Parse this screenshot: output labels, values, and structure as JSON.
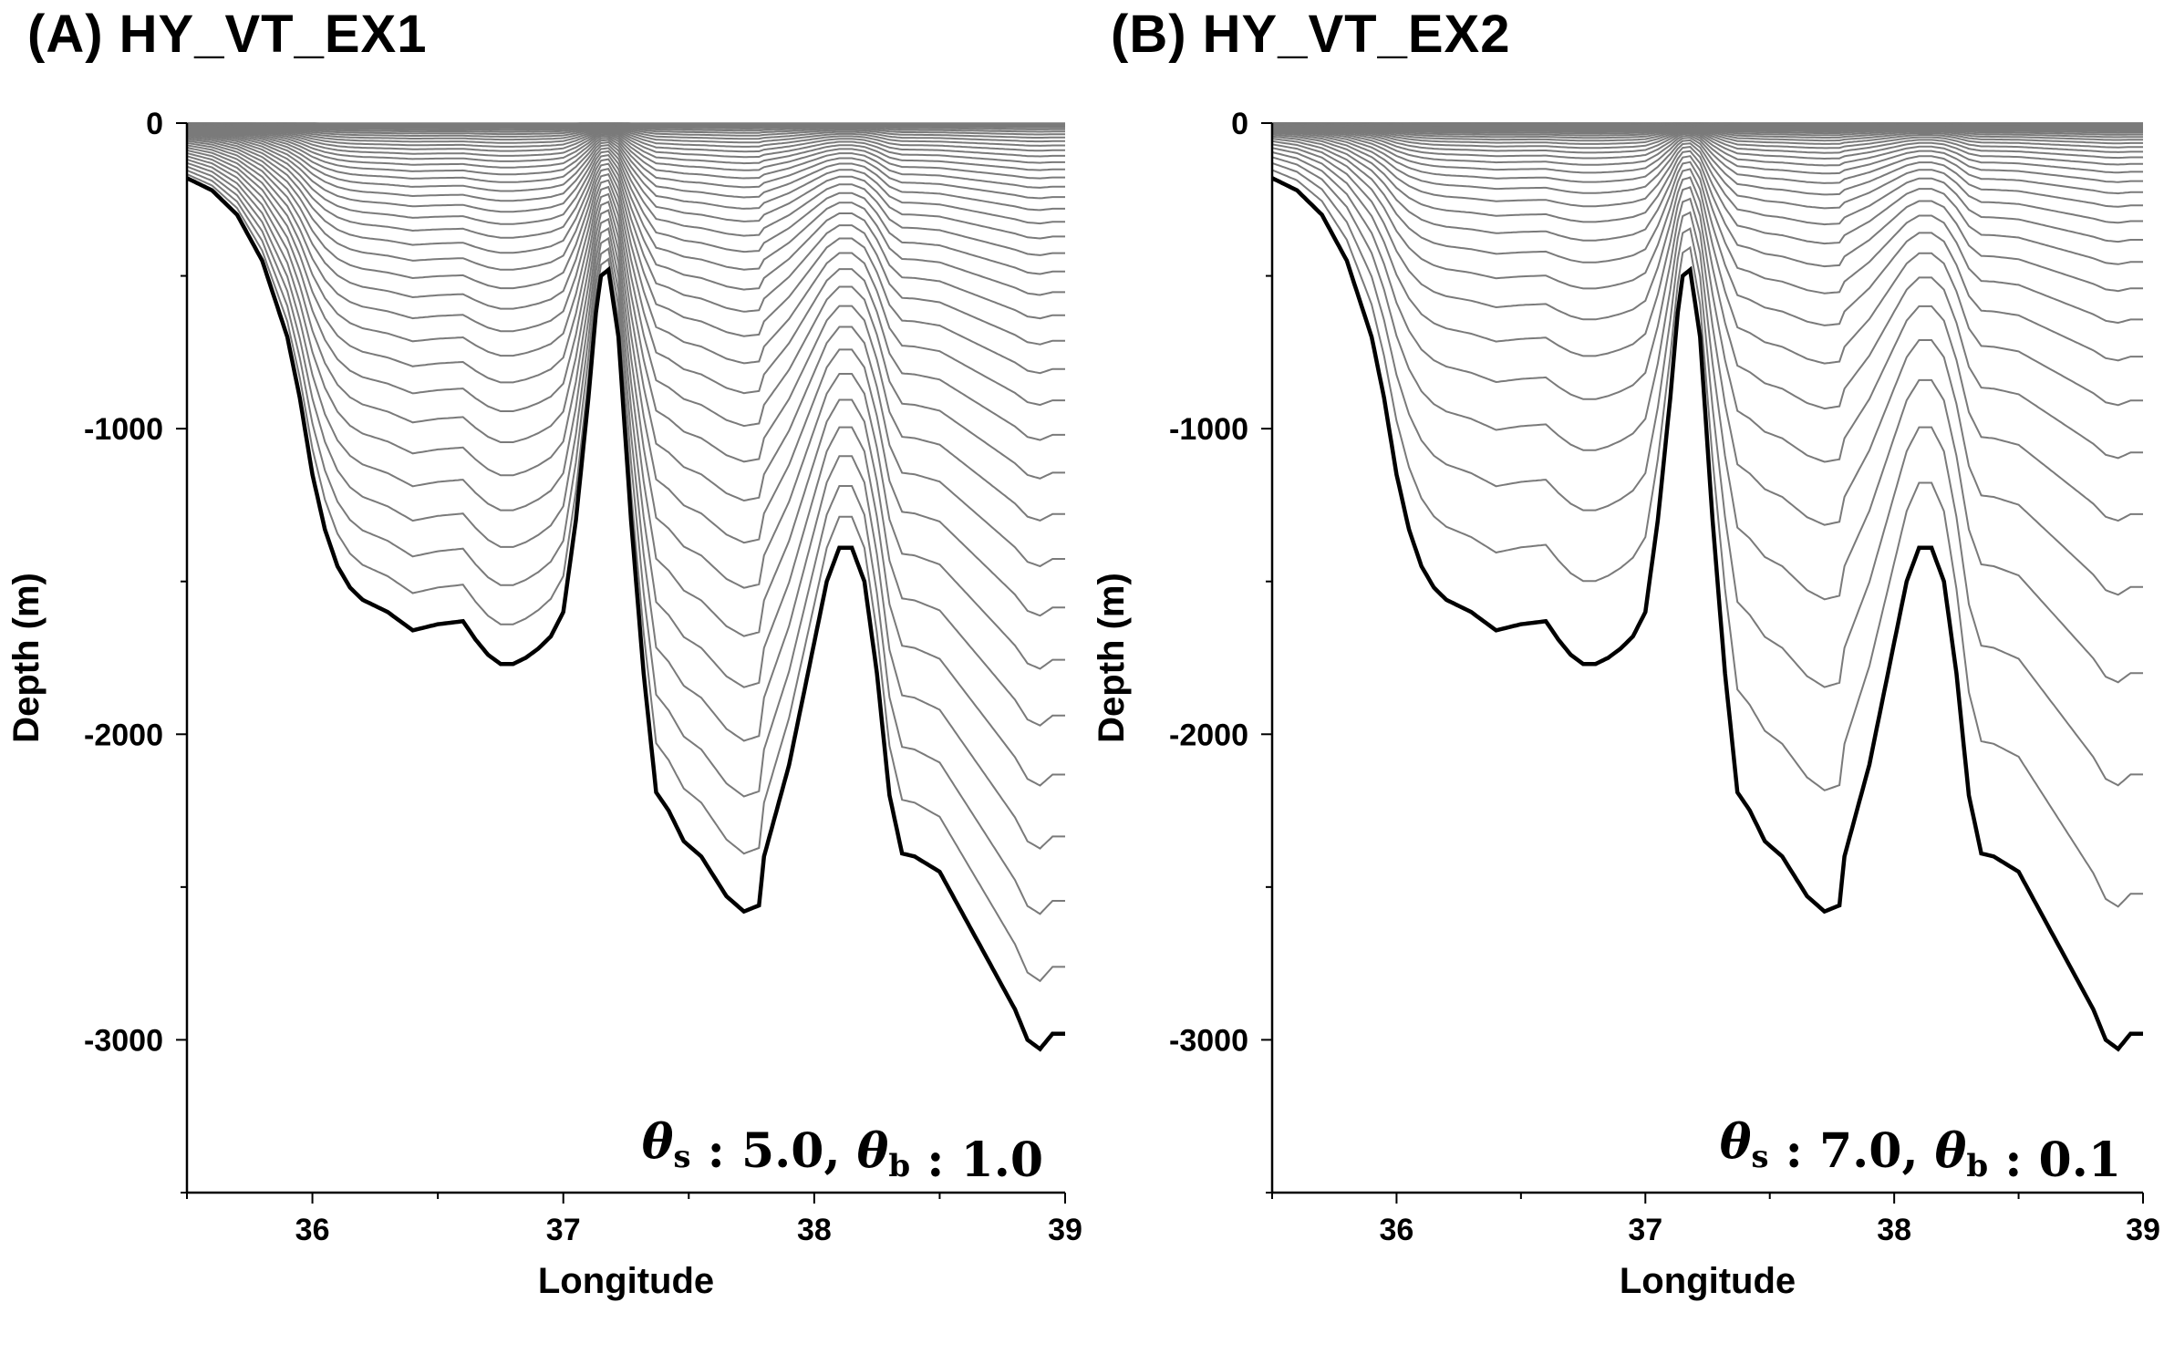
{
  "chart_data": [
    {
      "type": "line",
      "title": "(A) HY_VT_EX1",
      "xlabel": "Longitude",
      "ylabel": "Depth (m)",
      "xlim": [
        35.5,
        39
      ],
      "ylim": [
        -3500,
        0
      ],
      "xticks": [
        36,
        37,
        38,
        39
      ],
      "yticks": [
        0,
        -1000,
        -2000,
        -3000
      ],
      "annotation": {
        "theta_s_symbol": "θ",
        "theta_s_sub": "s",
        "theta_s_value": ": 5.0,",
        "theta_b_symbol": "θ",
        "theta_b_sub": "b",
        "theta_b_value": ": 1.0"
      },
      "theta_s": 5.0,
      "theta_b": 1.0,
      "n_levels": 40,
      "bottom_profile": {
        "x": [
          35.5,
          35.6,
          35.7,
          35.8,
          35.9,
          35.95,
          36.0,
          36.05,
          36.1,
          36.15,
          36.2,
          36.3,
          36.4,
          36.5,
          36.6,
          36.65,
          36.7,
          36.75,
          36.8,
          36.85,
          36.9,
          36.95,
          37.0,
          37.05,
          37.1,
          37.13,
          37.15,
          37.18,
          37.22,
          37.27,
          37.32,
          37.37,
          37.42,
          37.48,
          37.55,
          37.65,
          37.72,
          37.78,
          37.8,
          37.85,
          37.9,
          37.95,
          38.0,
          38.05,
          38.1,
          38.15,
          38.2,
          38.25,
          38.3,
          38.35,
          38.4,
          38.5,
          38.6,
          38.7,
          38.8,
          38.85,
          38.9,
          38.95,
          39.0
        ],
        "depth": [
          -180,
          -220,
          -300,
          -450,
          -700,
          -900,
          -1150,
          -1330,
          -1450,
          -1520,
          -1560,
          -1600,
          -1660,
          -1640,
          -1630,
          -1690,
          -1740,
          -1770,
          -1770,
          -1750,
          -1720,
          -1680,
          -1600,
          -1300,
          -900,
          -620,
          -500,
          -480,
          -700,
          -1300,
          -1800,
          -2190,
          -2250,
          -2350,
          -2400,
          -2530,
          -2580,
          -2560,
          -2400,
          -2250,
          -2100,
          -1900,
          -1700,
          -1500,
          -1390,
          -1390,
          -1500,
          -1800,
          -2200,
          -2390,
          -2400,
          -2450,
          -2600,
          -2750,
          -2900,
          -3000,
          -3030,
          -2980,
          -2980
        ]
      }
    },
    {
      "type": "line",
      "title": "(B) HY_VT_EX2",
      "xlabel": "Longitude",
      "ylabel": "Depth (m)",
      "xlim": [
        35.5,
        39
      ],
      "ylim": [
        -3500,
        0
      ],
      "xticks": [
        36,
        37,
        38,
        39
      ],
      "yticks": [
        0,
        -1000,
        -2000,
        -3000
      ],
      "annotation": {
        "theta_s_symbol": "θ",
        "theta_s_sub": "s",
        "theta_s_value": ": 7.0,",
        "theta_b_symbol": "θ",
        "theta_b_sub": "b",
        "theta_b_value": ": 0.1"
      },
      "theta_s": 7.0,
      "theta_b": 0.1,
      "n_levels": 40,
      "bottom_profile": {
        "x": [
          35.5,
          35.6,
          35.7,
          35.8,
          35.9,
          35.95,
          36.0,
          36.05,
          36.1,
          36.15,
          36.2,
          36.3,
          36.4,
          36.5,
          36.6,
          36.65,
          36.7,
          36.75,
          36.8,
          36.85,
          36.9,
          36.95,
          37.0,
          37.05,
          37.1,
          37.13,
          37.15,
          37.18,
          37.22,
          37.27,
          37.32,
          37.37,
          37.42,
          37.48,
          37.55,
          37.65,
          37.72,
          37.78,
          37.8,
          37.85,
          37.9,
          37.95,
          38.0,
          38.05,
          38.1,
          38.15,
          38.2,
          38.25,
          38.3,
          38.35,
          38.4,
          38.5,
          38.6,
          38.7,
          38.8,
          38.85,
          38.9,
          38.95,
          39.0
        ],
        "depth": [
          -180,
          -220,
          -300,
          -450,
          -700,
          -900,
          -1150,
          -1330,
          -1450,
          -1520,
          -1560,
          -1600,
          -1660,
          -1640,
          -1630,
          -1690,
          -1740,
          -1770,
          -1770,
          -1750,
          -1720,
          -1680,
          -1600,
          -1300,
          -900,
          -620,
          -500,
          -480,
          -700,
          -1300,
          -1800,
          -2190,
          -2250,
          -2350,
          -2400,
          -2530,
          -2580,
          -2560,
          -2400,
          -2250,
          -2100,
          -1900,
          -1700,
          -1500,
          -1390,
          -1390,
          -1500,
          -1800,
          -2200,
          -2390,
          -2400,
          -2450,
          -2600,
          -2750,
          -2900,
          -3000,
          -3030,
          -2980,
          -2980
        ]
      }
    }
  ],
  "colors": {
    "bottom_line": "#000000",
    "level_line": "#7a7a7a",
    "axis": "#000000"
  }
}
